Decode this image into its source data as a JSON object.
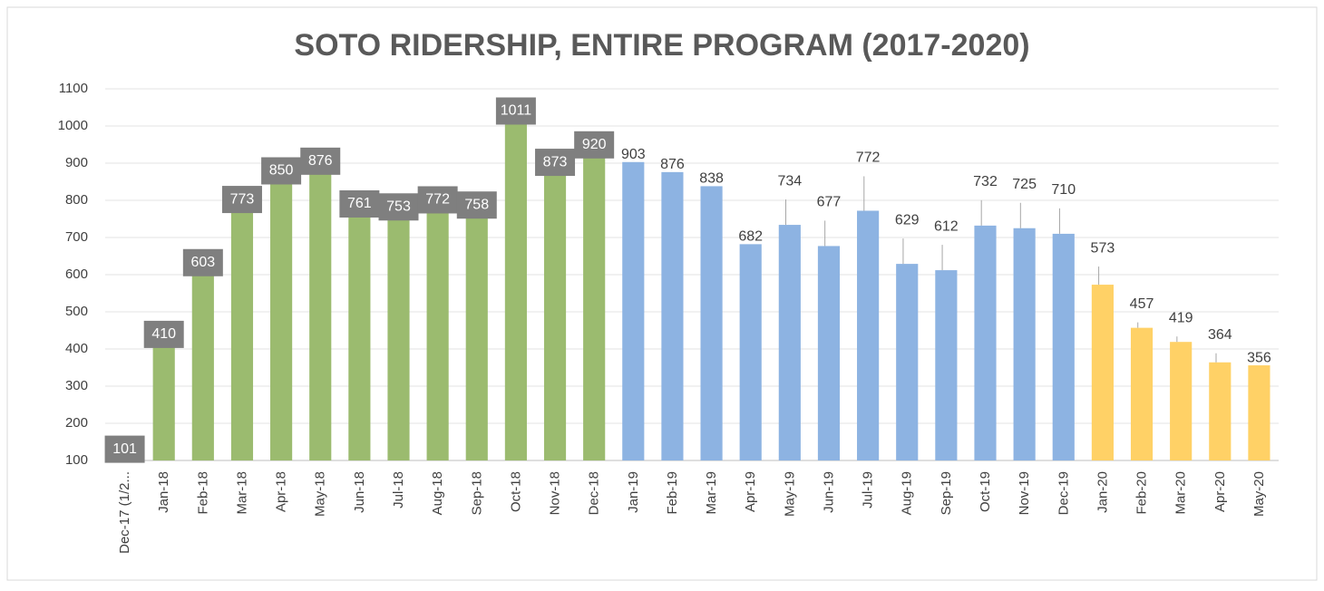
{
  "chart_data": {
    "type": "bar",
    "title": "SOTO RIDERSHIP, ENTIRE PROGRAM (2017-2020)",
    "categories": [
      "Dec-17 (1/2...",
      "Jan-18",
      "Feb-18",
      "Mar-18",
      "Apr-18",
      "May-18",
      "Jun-18",
      "Jul-18",
      "Aug-18",
      "Sep-18",
      "Oct-18",
      "Nov-18",
      "Dec-18",
      "Jan-19",
      "Feb-19",
      "Mar-19",
      "Apr-19",
      "May-19",
      "Jun-19",
      "Jul-19",
      "Aug-19",
      "Sep-19",
      "Oct-19",
      "Nov-19",
      "Dec-19",
      "Jan-20",
      "Feb-20",
      "Mar-20",
      "Apr-20",
      "May-20"
    ],
    "values": [
      101,
      410,
      603,
      773,
      850,
      876,
      761,
      753,
      772,
      758,
      1011,
      873,
      920,
      903,
      876,
      838,
      682,
      734,
      677,
      772,
      629,
      612,
      732,
      725,
      710,
      573,
      457,
      419,
      364,
      356
    ],
    "colors": [
      "#9bbb6f",
      "#9bbb6f",
      "#9bbb6f",
      "#9bbb6f",
      "#9bbb6f",
      "#9bbb6f",
      "#9bbb6f",
      "#9bbb6f",
      "#9bbb6f",
      "#9bbb6f",
      "#9bbb6f",
      "#9bbb6f",
      "#9bbb6f",
      "#8db3e2",
      "#8db3e2",
      "#8db3e2",
      "#8db3e2",
      "#8db3e2",
      "#8db3e2",
      "#8db3e2",
      "#8db3e2",
      "#8db3e2",
      "#8db3e2",
      "#8db3e2",
      "#8db3e2",
      "#ffd166",
      "#ffd166",
      "#ffd166",
      "#ffd166",
      "#ffd166"
    ],
    "ylim": [
      100,
      1100
    ],
    "yticks": [
      100,
      200,
      300,
      400,
      500,
      600,
      700,
      800,
      900,
      1000,
      1100
    ],
    "grid": true
  }
}
